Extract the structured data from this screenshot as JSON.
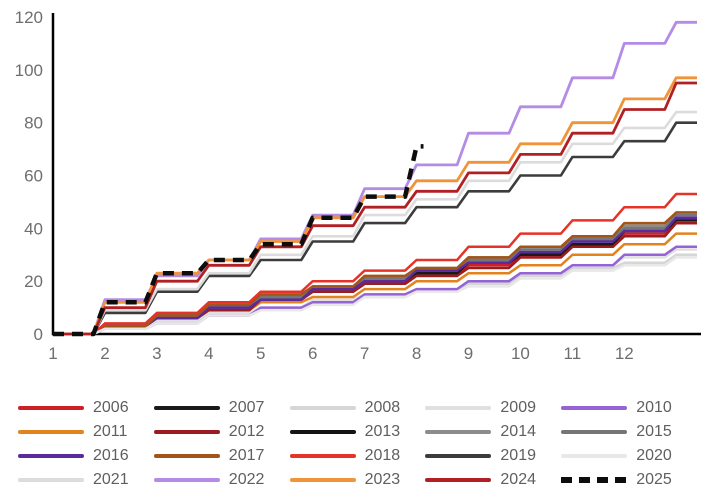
{
  "chart_data": {
    "type": "line",
    "subtype": "stepped-cumulative",
    "title": "",
    "xlabel": "",
    "ylabel": "",
    "x_tick_labels": [
      "1",
      "2",
      "3",
      "4",
      "5",
      "6",
      "7",
      "8",
      "9",
      "10",
      "11",
      "12"
    ],
    "y_tick_labels": [
      "0",
      "20",
      "40",
      "60",
      "80",
      "100",
      "120"
    ],
    "y_ticks": [
      0,
      20,
      40,
      60,
      80,
      100,
      120
    ],
    "ylim": [
      0,
      120
    ],
    "xlim_months": [
      1,
      13.4
    ],
    "grid": "off",
    "legend_position": "bottom",
    "legend_columns": 5,
    "axis_color": "#000000",
    "tick_label_color": "#6e6e6e",
    "legend_text_color": "#5f5f5f",
    "series": [
      {
        "name": "2006",
        "color": "#cc2027",
        "width": 2.5,
        "dashed": false,
        "values": [
          0,
          3,
          6,
          10,
          13,
          16,
          19,
          22,
          26,
          29,
          33,
          38,
          42
        ]
      },
      {
        "name": "2007",
        "color": "#1a1a1a",
        "width": 2.5,
        "dashed": false,
        "values": [
          0,
          3,
          7,
          10,
          14,
          17,
          20,
          23,
          27,
          30,
          34,
          39,
          43
        ]
      },
      {
        "name": "2008",
        "color": "#d6d6d6",
        "width": 2.5,
        "dashed": false,
        "values": [
          0,
          2,
          5,
          7,
          9,
          12,
          14,
          16,
          19,
          22,
          25,
          27,
          30
        ]
      },
      {
        "name": "2009",
        "color": "#e0e0e0",
        "width": 2.5,
        "dashed": false,
        "values": [
          0,
          2,
          5,
          8,
          10,
          13,
          15,
          17,
          20,
          23,
          26,
          29,
          32
        ]
      },
      {
        "name": "2010",
        "color": "#9663d6",
        "width": 2.5,
        "dashed": false,
        "values": [
          0,
          2,
          4,
          7,
          10,
          12,
          15,
          17,
          20,
          23,
          26,
          30,
          33
        ]
      },
      {
        "name": "2011",
        "color": "#e2831e",
        "width": 2.5,
        "dashed": false,
        "values": [
          0,
          3,
          6,
          9,
          12,
          14,
          17,
          20,
          23,
          26,
          30,
          34,
          38
        ]
      },
      {
        "name": "2012",
        "color": "#9b1b1e",
        "width": 2.5,
        "dashed": false,
        "values": [
          0,
          3,
          6,
          9,
          13,
          16,
          19,
          22,
          25,
          29,
          33,
          37,
          42
        ]
      },
      {
        "name": "2013",
        "color": "#141414",
        "width": 2.5,
        "dashed": false,
        "values": [
          0,
          3,
          7,
          10,
          14,
          17,
          21,
          24,
          28,
          31,
          35,
          40,
          44
        ]
      },
      {
        "name": "2014",
        "color": "#8c8c8c",
        "width": 2.5,
        "dashed": false,
        "values": [
          0,
          3,
          7,
          11,
          14,
          18,
          21,
          25,
          29,
          32,
          36,
          41,
          46
        ]
      },
      {
        "name": "2015",
        "color": "#767676",
        "width": 2.5,
        "dashed": false,
        "values": [
          0,
          3,
          7,
          10,
          14,
          17,
          21,
          24,
          28,
          32,
          36,
          40,
          45
        ]
      },
      {
        "name": "2016",
        "color": "#5b2b9e",
        "width": 2.5,
        "dashed": false,
        "values": [
          0,
          3,
          6,
          10,
          13,
          17,
          20,
          24,
          27,
          31,
          35,
          39,
          44
        ]
      },
      {
        "name": "2017",
        "color": "#a35419",
        "width": 2.5,
        "dashed": false,
        "values": [
          0,
          3,
          7,
          11,
          15,
          18,
          22,
          25,
          29,
          33,
          37,
          42,
          46
        ]
      },
      {
        "name": "2018",
        "color": "#e63329",
        "width": 2.5,
        "dashed": false,
        "values": [
          0,
          4,
          8,
          12,
          16,
          20,
          24,
          28,
          33,
          38,
          43,
          48,
          53
        ]
      },
      {
        "name": "2019",
        "color": "#3c3c3c",
        "width": 2.6,
        "dashed": false,
        "values": [
          0,
          8,
          16,
          22,
          28,
          35,
          42,
          48,
          54,
          60,
          67,
          73,
          80
        ]
      },
      {
        "name": "2020",
        "color": "#e8e8e8",
        "width": 2.5,
        "dashed": false,
        "values": [
          0,
          2,
          4,
          7,
          9,
          11,
          14,
          16,
          18,
          21,
          24,
          26,
          29
        ]
      },
      {
        "name": "2021",
        "color": "#dcdcdc",
        "width": 2.6,
        "dashed": false,
        "values": [
          0,
          9,
          17,
          23,
          30,
          37,
          45,
          51,
          58,
          65,
          72,
          78,
          84
        ]
      },
      {
        "name": "2022",
        "color": "#b48ce6",
        "width": 2.8,
        "dashed": false,
        "values": [
          0,
          13,
          22,
          28,
          36,
          45,
          55,
          64,
          76,
          86,
          97,
          110,
          118
        ]
      },
      {
        "name": "2023",
        "color": "#f0943a",
        "width": 2.8,
        "dashed": false,
        "values": [
          0,
          12,
          23,
          28,
          35,
          44,
          52,
          58,
          65,
          72,
          80,
          89,
          97
        ]
      },
      {
        "name": "2024",
        "color": "#b02025",
        "width": 2.8,
        "dashed": false,
        "values": [
          0,
          10,
          20,
          26,
          33,
          41,
          48,
          54,
          61,
          68,
          76,
          85,
          95
        ]
      },
      {
        "name": "2025",
        "color": "#0d0d0d",
        "width": 4.5,
        "dashed": true,
        "values": [
          0,
          12,
          23,
          28,
          34,
          44,
          52,
          71
        ]
      }
    ]
  }
}
